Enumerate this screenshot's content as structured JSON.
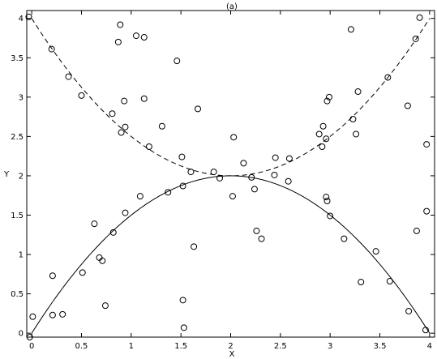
{
  "chart_data": {
    "type": "scatter",
    "title": "(a)",
    "xlabel": "X",
    "ylabel": "Y",
    "xlim": [
      -0.05,
      4.05
    ],
    "ylim": [
      -0.05,
      4.1
    ],
    "xticks": [
      0,
      0.5,
      1,
      1.5,
      2,
      2.5,
      3,
      3.5,
      4
    ],
    "xtick_labels": [
      "0",
      "0.5",
      "1",
      "1.5",
      "2",
      "2.5",
      "3",
      "3.5",
      "4"
    ],
    "yticks": [
      0,
      0.5,
      1,
      1.5,
      2,
      2.5,
      3,
      3.5,
      4
    ],
    "ytick_labels": [
      "0",
      "0.5",
      "1",
      "1.5",
      "2",
      "2.5",
      "3",
      "3.5",
      "4"
    ],
    "grid": false,
    "points": [
      [
        -0.03,
        4.02
      ],
      [
        -0.02,
        -0.05
      ],
      [
        0.01,
        0.21
      ],
      [
        0.2,
        3.61
      ],
      [
        0.21,
        0.73
      ],
      [
        0.21,
        0.23
      ],
      [
        0.31,
        0.24
      ],
      [
        0.37,
        3.26
      ],
      [
        0.5,
        3.02
      ],
      [
        0.51,
        0.77
      ],
      [
        0.63,
        1.39
      ],
      [
        0.68,
        0.96
      ],
      [
        0.71,
        0.92
      ],
      [
        0.74,
        0.35
      ],
      [
        0.81,
        2.79
      ],
      [
        0.82,
        1.28
      ],
      [
        0.87,
        3.7
      ],
      [
        0.89,
        3.92
      ],
      [
        0.9,
        2.55
      ],
      [
        0.93,
        2.95
      ],
      [
        0.94,
        2.62
      ],
      [
        0.94,
        1.53
      ],
      [
        1.05,
        3.78
      ],
      [
        1.09,
        1.74
      ],
      [
        1.13,
        3.76
      ],
      [
        1.13,
        2.98
      ],
      [
        1.18,
        2.37
      ],
      [
        1.31,
        2.63
      ],
      [
        1.37,
        1.79
      ],
      [
        1.46,
        3.46
      ],
      [
        1.51,
        2.24
      ],
      [
        1.52,
        1.87
      ],
      [
        1.52,
        0.42
      ],
      [
        1.53,
        0.07
      ],
      [
        1.6,
        2.05
      ],
      [
        1.63,
        1.1
      ],
      [
        1.67,
        2.85
      ],
      [
        1.83,
        2.05
      ],
      [
        1.89,
        1.97
      ],
      [
        2.02,
        1.74
      ],
      [
        2.03,
        2.49
      ],
      [
        2.13,
        2.16
      ],
      [
        2.21,
        1.98
      ],
      [
        2.24,
        1.83
      ],
      [
        2.26,
        1.3
      ],
      [
        2.31,
        1.2
      ],
      [
        2.44,
        2.01
      ],
      [
        2.45,
        2.23
      ],
      [
        2.58,
        1.93
      ],
      [
        2.59,
        2.22
      ],
      [
        2.89,
        2.53
      ],
      [
        2.92,
        2.37
      ],
      [
        2.93,
        2.63
      ],
      [
        2.96,
        1.73
      ],
      [
        2.96,
        2.47
      ],
      [
        2.97,
        1.68
      ],
      [
        2.97,
        2.95
      ],
      [
        2.99,
        3.0
      ],
      [
        3.0,
        1.49
      ],
      [
        3.14,
        1.2
      ],
      [
        3.21,
        3.86
      ],
      [
        3.23,
        2.72
      ],
      [
        3.26,
        2.53
      ],
      [
        3.28,
        3.07
      ],
      [
        3.31,
        0.65
      ],
      [
        3.46,
        1.04
      ],
      [
        3.58,
        3.25
      ],
      [
        3.6,
        0.66
      ],
      [
        3.78,
        2.89
      ],
      [
        3.79,
        0.28
      ],
      [
        3.86,
        3.74
      ],
      [
        3.87,
        1.3
      ],
      [
        3.9,
        4.01
      ],
      [
        3.96,
        0.04
      ],
      [
        3.97,
        2.4
      ],
      [
        3.97,
        1.55
      ]
    ],
    "series": [
      {
        "style": "dashed",
        "curve": "0.5*(x-2)^2+2",
        "x": [
          0,
          0.5,
          1,
          1.5,
          2,
          2.5,
          3,
          3.5,
          4
        ],
        "y": [
          4,
          3.125,
          2.5,
          2.125,
          2,
          2.125,
          2.5,
          3.125,
          4
        ]
      },
      {
        "style": "solid",
        "curve": "-0.5*(x-2)^2+2",
        "x": [
          0,
          0.5,
          1,
          1.5,
          2,
          2.5,
          3,
          3.5,
          4
        ],
        "y": [
          0,
          0.875,
          1.5,
          1.875,
          2,
          1.875,
          1.5,
          0.875,
          0
        ]
      }
    ]
  }
}
